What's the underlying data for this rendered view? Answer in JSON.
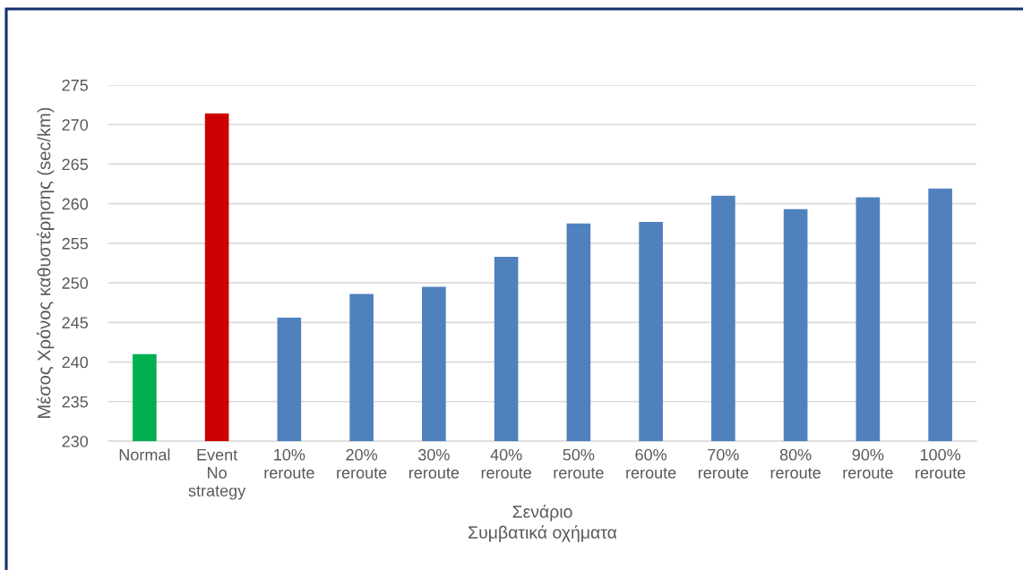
{
  "chart_data": {
    "type": "bar",
    "xlabel": "Σενάριο\nΣυμβατικά οχήματα",
    "ylabel": "Μέσος Χρόνος καθυστέρησης (sec/km)",
    "categories": [
      "Normal",
      "Event\nNo\nstrategy",
      "10%\nreroute",
      "20%\nreroute",
      "30%\nreroute",
      "40%\nreroute",
      "50%\nreroute",
      "60%\nreroute",
      "70%\nreroute",
      "80%\nreroute",
      "90%\nreroute",
      "100%\nreroute"
    ],
    "values": [
      241.0,
      271.4,
      245.6,
      248.6,
      249.5,
      253.3,
      257.5,
      257.7,
      261.0,
      259.3,
      260.8,
      261.9
    ],
    "colors": [
      "#00b050",
      "#cc0000",
      "#4f81bd",
      "#4f81bd",
      "#4f81bd",
      "#4f81bd",
      "#4f81bd",
      "#4f81bd",
      "#4f81bd",
      "#4f81bd",
      "#4f81bd",
      "#4f81bd"
    ],
    "ylim": [
      230,
      275
    ],
    "yticks": [
      230,
      235,
      240,
      245,
      250,
      255,
      260,
      265,
      270,
      275
    ],
    "grid": "y"
  }
}
